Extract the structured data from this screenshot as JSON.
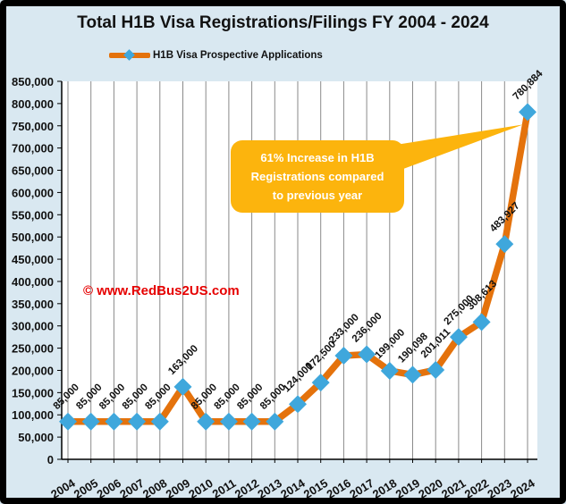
{
  "page": {
    "title": "Total H1B Visa Registrations/Filings FY 2004 - 2024",
    "watermark": "© www.RedBus2US.com",
    "callout": {
      "line1": "61% Increase in H1B",
      "line2": "Registrations compared",
      "line3": "to previous year"
    }
  },
  "legend": {
    "label": "H1B Visa Prospective Applications"
  },
  "colors": {
    "background": "#d9e8f1",
    "plot_background": "#ffffff",
    "border": "#000000",
    "line": "#e4720c",
    "marker": "#3fa7dc",
    "gridline": "#8a8a8a",
    "axis": "#000000",
    "text": "#111111",
    "callout_fill": "#fcb40d",
    "callout_text": "#ffffff",
    "watermark": "#e60000"
  },
  "chart_data": {
    "type": "line",
    "title": "Total H1B Visa Registrations/Filings FY 2004 - 2024",
    "series_name": "H1B Visa Prospective Applications",
    "categories": [
      "2004",
      "2005",
      "2006",
      "2007",
      "2008",
      "2009",
      "2010",
      "2011",
      "2012",
      "2013",
      "2014",
      "2015",
      "2016",
      "2017",
      "2018",
      "2019",
      "2020",
      "2021",
      "2022",
      "2023",
      "2024"
    ],
    "values": [
      85000,
      85000,
      85000,
      85000,
      85000,
      163000,
      85000,
      85000,
      85000,
      85000,
      124000,
      172500,
      233000,
      236000,
      199000,
      190098,
      201011,
      275000,
      308613,
      483927,
      780884
    ],
    "labels": [
      "85,000",
      "85,000",
      "85,000",
      "85,000",
      "85,000",
      "163,000",
      "85,000",
      "85,000",
      "85,000",
      "85,000",
      "124,000",
      "172,500",
      "233,000",
      "236,000",
      "199,000",
      "190,098",
      "201,011",
      "275,000",
      "308,613",
      "483,927",
      "780,884"
    ],
    "xlabel": "",
    "ylabel": "",
    "ylim": [
      0,
      850000
    ],
    "ytick_step": 50000,
    "grid": "vertical-only",
    "legend_position": "top-left",
    "marker": "diamond",
    "annotation": "61% Increase in H1B Registrations compared to previous year",
    "annotation_points_to": "2024"
  }
}
